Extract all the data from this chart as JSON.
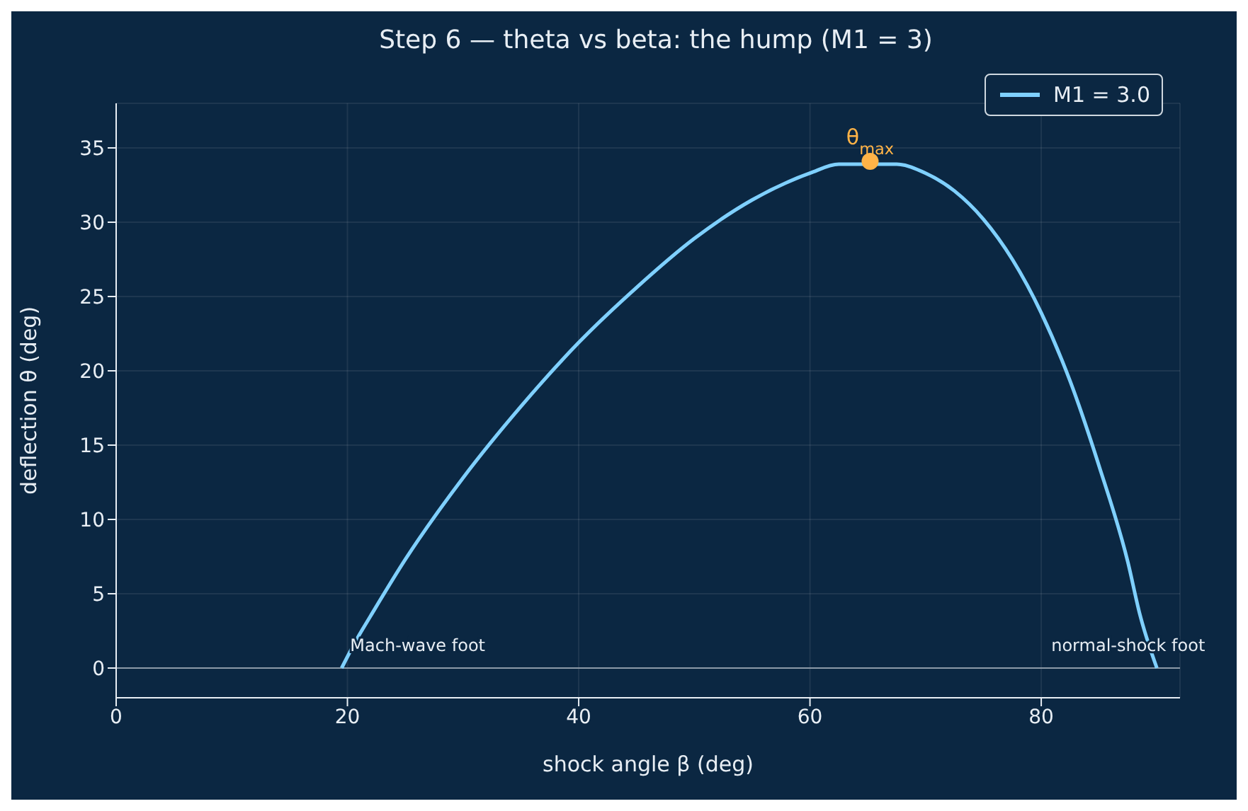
{
  "chart_data": {
    "type": "line",
    "title": "Step 6 — theta vs beta: the hump (M1 = 3)",
    "xlabel": "shock angle β (deg)",
    "ylabel": "deflection θ (deg)",
    "xlim": [
      0,
      92
    ],
    "xticks": [
      0,
      20,
      40,
      60,
      80
    ],
    "ylim": [
      -2,
      38
    ],
    "yticks": [
      0,
      5,
      10,
      15,
      20,
      25,
      30,
      35
    ],
    "grid": true,
    "legend": "top right",
    "series": [
      {
        "name": "M1 = 3.0",
        "color": "#7fd0ff",
        "x": [
          19.5,
          20.5,
          21,
          22,
          25,
          30,
          35,
          40,
          45,
          50,
          55,
          60,
          62.5,
          67.5,
          70,
          72.5,
          75,
          77.5,
          80,
          82.5,
          85,
          87.5,
          88.5,
          90
        ],
        "values": [
          0,
          1.5,
          2.2,
          3.5,
          7.3,
          12.8,
          17.6,
          21.9,
          25.6,
          28.9,
          31.5,
          33.3,
          33.9,
          33.9,
          33.3,
          32.1,
          30.2,
          27.5,
          23.9,
          19.3,
          13.6,
          7.1,
          3.7,
          0
        ]
      },
      {
        "type": "scatter",
        "color": "#ffb347",
        "x": [
          65.2
        ],
        "values": [
          34.1
        ]
      }
    ],
    "ref_lines": [
      {
        "axis": "y",
        "value": 0,
        "color": "#8c9aa8"
      }
    ],
    "annotations": [
      {
        "text": "θ$_{max}$",
        "x": 65.2,
        "y": 34.1
      },
      {
        "text": "Mach-wave foot",
        "x": 19.5,
        "y": 0
      },
      {
        "text": "normal-shock foot",
        "x": 90,
        "y": 0
      }
    ]
  }
}
